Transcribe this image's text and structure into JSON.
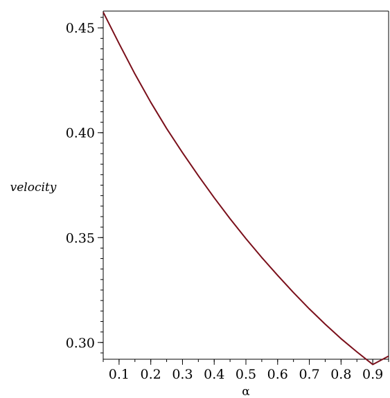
{
  "chart_data": {
    "type": "line",
    "title": "",
    "xlabel": "α",
    "ylabel": "velocity",
    "xlim": [
      0.05,
      0.95
    ],
    "ylim": [
      0.292,
      0.458
    ],
    "grid": false,
    "x_ticks": [
      "0.1",
      "0.2",
      "0.3",
      "0.4",
      "0.5",
      "0.6",
      "0.7",
      "0.8",
      "0.9"
    ],
    "y_ticks": [
      "0.30",
      "0.35",
      "0.40",
      "0.45"
    ],
    "series": [
      {
        "color": "#7a0f1a",
        "x": [
          0.05,
          0.1,
          0.15,
          0.2,
          0.25,
          0.3,
          0.35,
          0.4,
          0.45,
          0.5,
          0.55,
          0.6,
          0.65,
          0.7,
          0.75,
          0.8,
          0.85,
          0.9,
          0.95
        ],
        "y": [
          0.4575,
          0.4425,
          0.428,
          0.4145,
          0.402,
          0.3905,
          0.3795,
          0.369,
          0.359,
          0.3495,
          0.3405,
          0.332,
          0.3238,
          0.316,
          0.3087,
          0.3018,
          0.2955,
          0.2895,
          0.2935
        ]
      }
    ]
  }
}
